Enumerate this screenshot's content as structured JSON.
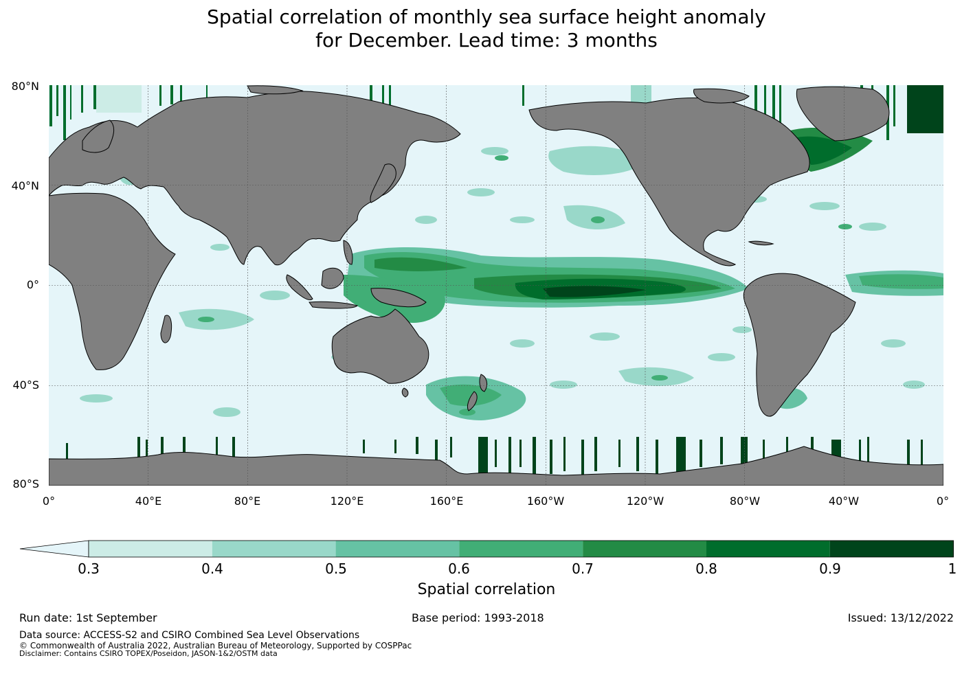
{
  "title": {
    "line1": "Spatial correlation of monthly sea surface height anomaly",
    "line2": "for December. Lead time: 3 months"
  },
  "map": {
    "lat_labels": [
      "80°N",
      "40°N",
      "0°",
      "40°S",
      "80°S"
    ],
    "lon_labels": [
      "0°",
      "40°E",
      "80°E",
      "120°E",
      "160°E",
      "160°W",
      "120°W",
      "80°W",
      "40°W",
      "0°"
    ],
    "ocean_color": "#e5f5f9",
    "land_color": "#808080"
  },
  "colorbar": {
    "ticks": [
      "0.3",
      "0.4",
      "0.5",
      "0.6",
      "0.7",
      "0.8",
      "0.9",
      "1"
    ],
    "colors": [
      "#ccece6",
      "#99d8c9",
      "#66c2a4",
      "#41ae76",
      "#238b45",
      "#006d2c",
      "#00441b"
    ],
    "under_color": "#e5f5f9",
    "label": "Spatial correlation"
  },
  "footer": {
    "run_date": "Run date: 1st September",
    "base_period": "Base period: 1993-2018",
    "issued": "Issued: 13/12/2022",
    "data_source": "Data source: ACCESS-S2 and CSIRO Combined Sea Level Observations",
    "copyright": "© Commonwealth of Australia 2022, Australian Bureau of Meteorology, Supported by COSPPac",
    "disclaimer": "Disclaimer: Contains CSIRO TOPEX/Poseidon, JASON-1&2/OSTM data"
  }
}
